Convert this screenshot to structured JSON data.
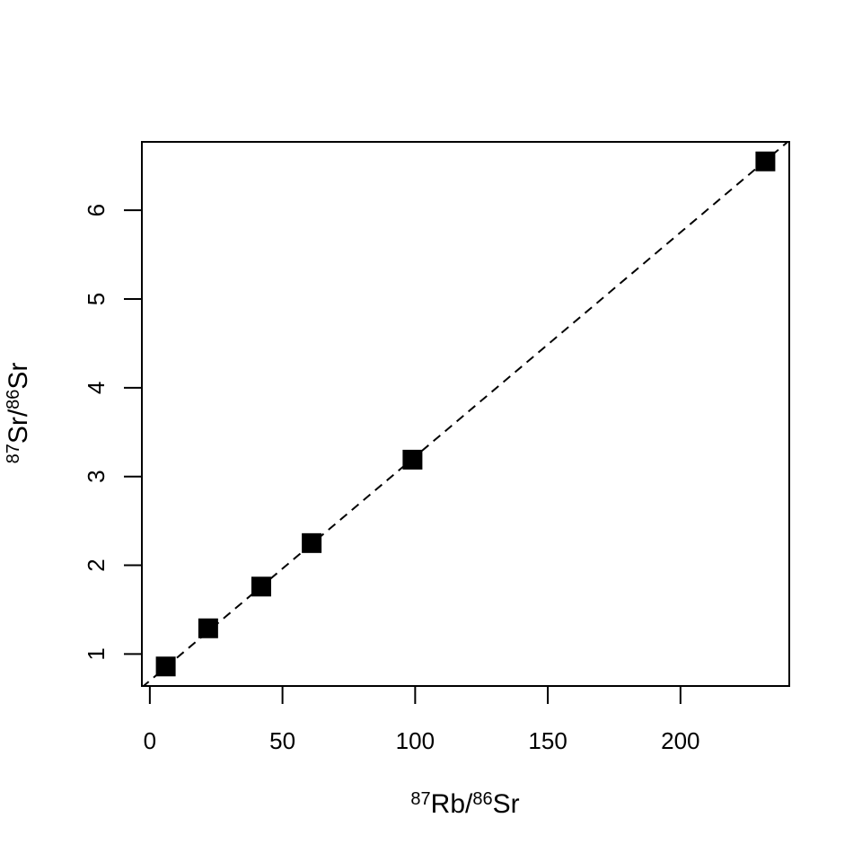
{
  "chart_data": {
    "type": "scatter",
    "title": "",
    "xlabel": {
      "parts": [
        {
          "sup": "87"
        },
        {
          "text": "Rb/"
        },
        {
          "sup": "86"
        },
        {
          "text": "Sr"
        }
      ]
    },
    "ylabel": {
      "parts": [
        {
          "sup": "87"
        },
        {
          "text": "Sr/"
        },
        {
          "sup": "86"
        },
        {
          "text": "Sr"
        }
      ]
    },
    "xlim": [
      -3,
      241
    ],
    "ylim": [
      0.64,
      6.77
    ],
    "xticks": [
      0,
      50,
      100,
      150,
      200
    ],
    "yticks": [
      1,
      2,
      3,
      4,
      5,
      6
    ],
    "marker": "filled-square",
    "point_color": "#000000",
    "points": [
      {
        "x": 6,
        "y": 0.86
      },
      {
        "x": 22,
        "y": 1.29
      },
      {
        "x": 42,
        "y": 1.76
      },
      {
        "x": 61,
        "y": 2.25
      },
      {
        "x": 99,
        "y": 3.19
      },
      {
        "x": 232,
        "y": 6.55
      }
    ],
    "reference_line": {
      "style": "dashed",
      "intercept": 0.7,
      "slope": 0.02525
    },
    "grid": false,
    "legend": "none"
  }
}
